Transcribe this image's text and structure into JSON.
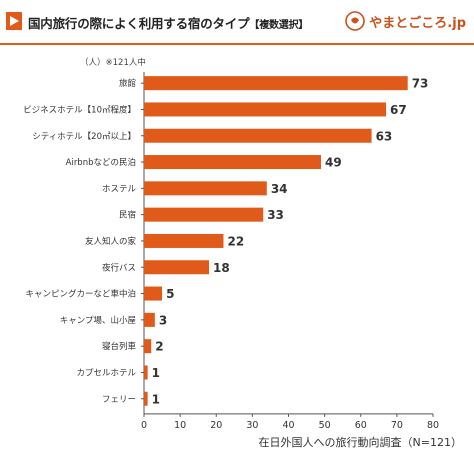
{
  "header": {
    "title": "国内旅行の際によく利用する宿のタイプ",
    "subtitle": "【複数選択】",
    "brand": "やまとごころ.jp",
    "accent_color": "#e05a1a",
    "icon": "play-icon",
    "brand_icon": "yamato-logo-icon"
  },
  "unit_note": "（人）※121人中",
  "source": "在日外国人への旅行動向調査（N=121）",
  "chart_data": {
    "type": "bar",
    "orientation": "horizontal",
    "title": "国内旅行の際によく利用する宿のタイプ【複数選択】",
    "categories": [
      "旅館",
      "ビジネスホテル【10㎡程度】",
      "シティホテル【20㎡以上】",
      "Airbnbなどの民泊",
      "ホステル",
      "民宿",
      "友人知人の家",
      "夜行バス",
      "キャンピングカーなど車中泊",
      "キャンプ場、山小屋",
      "寝台列車",
      "カプセルホテル",
      "フェリー"
    ],
    "values": [
      73,
      67,
      63,
      49,
      34,
      33,
      22,
      18,
      5,
      3,
      2,
      1,
      1
    ],
    "xlim": [
      0,
      80
    ],
    "xticks": [
      0,
      10,
      20,
      30,
      40,
      50,
      60,
      70,
      80
    ],
    "bar_color": "#e05a1a",
    "grid": false,
    "data_labels": true
  }
}
